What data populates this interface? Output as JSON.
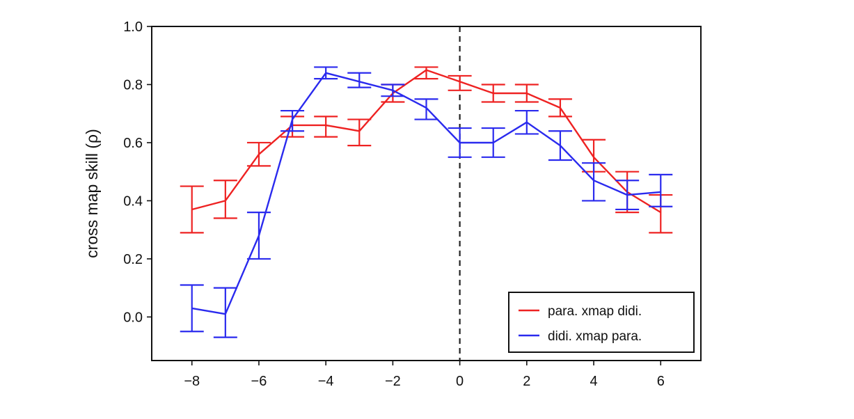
{
  "chart_data": {
    "type": "line",
    "title": "",
    "xlabel": "",
    "ylabel": "cross map skill (ρ)",
    "xlim": [
      -9.2,
      7.2
    ],
    "ylim": [
      -0.15,
      1.0
    ],
    "xticks": [
      -8,
      -6,
      -4,
      -2,
      0,
      2,
      4,
      6
    ],
    "xtick_labels": [
      "−8",
      "−6",
      "−4",
      "−2",
      "0",
      "2",
      "4",
      "6"
    ],
    "yticks": [
      0.0,
      0.2,
      0.4,
      0.6,
      0.8,
      1.0
    ],
    "ytick_labels": [
      "0.0",
      "0.2",
      "0.4",
      "0.6",
      "0.8",
      "1.0"
    ],
    "grid": false,
    "vertical_reference_line": {
      "x": 0,
      "style": "dashed",
      "color": "#222222"
    },
    "legend": {
      "position": "bottom-right"
    },
    "x": [
      -8,
      -7,
      -6,
      -5,
      -4,
      -3,
      -2,
      -1,
      0,
      1,
      2,
      3,
      4,
      5,
      6
    ],
    "series": [
      {
        "name": "para. xmap didi.",
        "color": "#ee2222",
        "values": [
          0.37,
          0.4,
          0.56,
          0.66,
          0.66,
          0.64,
          0.77,
          0.85,
          0.81,
          0.77,
          0.77,
          0.72,
          0.55,
          0.43,
          0.36
        ],
        "err_low": [
          0.29,
          0.34,
          0.52,
          0.62,
          0.62,
          0.59,
          0.74,
          0.82,
          0.78,
          0.74,
          0.74,
          0.69,
          0.5,
          0.36,
          0.29
        ],
        "err_high": [
          0.45,
          0.47,
          0.6,
          0.69,
          0.69,
          0.68,
          0.8,
          0.86,
          0.83,
          0.8,
          0.8,
          0.75,
          0.61,
          0.5,
          0.42
        ]
      },
      {
        "name": "didi. xmap para.",
        "color": "#2a2aee",
        "values": [
          0.03,
          0.01,
          0.28,
          0.68,
          0.84,
          0.81,
          0.78,
          0.72,
          0.6,
          0.6,
          0.67,
          0.59,
          0.47,
          0.42,
          0.43
        ],
        "err_low": [
          -0.05,
          -0.07,
          0.2,
          0.64,
          0.82,
          0.79,
          0.76,
          0.68,
          0.55,
          0.55,
          0.63,
          0.54,
          0.4,
          0.37,
          0.38
        ],
        "err_high": [
          0.11,
          0.1,
          0.36,
          0.71,
          0.86,
          0.84,
          0.8,
          0.75,
          0.65,
          0.65,
          0.71,
          0.64,
          0.53,
          0.47,
          0.49
        ]
      }
    ]
  }
}
